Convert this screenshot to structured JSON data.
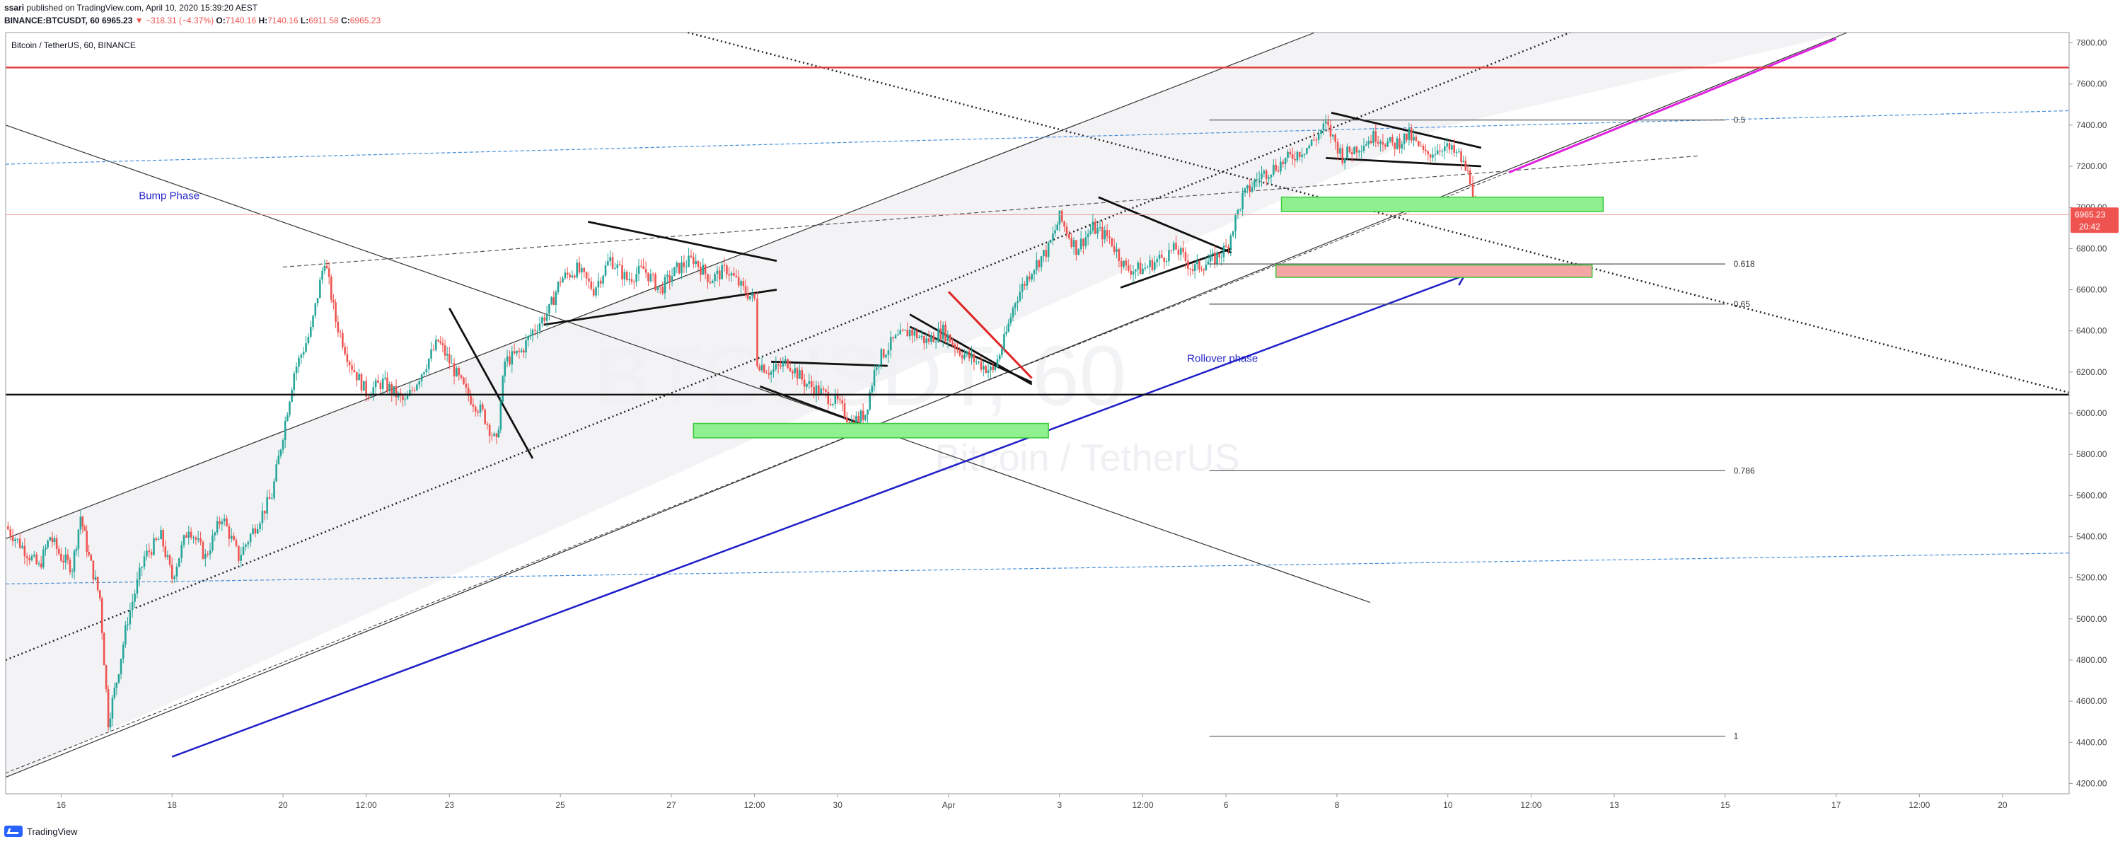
{
  "header": {
    "publisher": "ssari",
    "published_text": "published on TradingView.com, April 10, 2020 15:39:20 AEST",
    "symbol": "BINANCE:BTCUSDT, 60",
    "last": "6965.23",
    "change": "−318.31 (−4.37%)",
    "o_label": "O:",
    "o_val": "7140.16",
    "h_label": "H:",
    "h_val": "7140.16",
    "l_label": "L:",
    "l_val": "6911.58",
    "c_label": "C:",
    "c_val": "6965.23"
  },
  "footer": {
    "brand": "TradingView"
  },
  "colors": {
    "up": "#26a69a",
    "down": "#ef5350",
    "accent": "#2962ff"
  },
  "chart_data": {
    "type": "candlestick",
    "title": "Bitcoin / TetherUS, 60, BINANCE",
    "watermark_symbol": "BTCUSDT, 60",
    "watermark_name": "Bitcoin / TetherUS",
    "grid": false,
    "ylim": [
      4150,
      7850
    ],
    "x_range_days": [
      15.0,
      21.4
    ],
    "y_ticks": [
      4200,
      4400,
      4600,
      4800,
      5000,
      5200,
      5400,
      5600,
      5800,
      6000,
      6200,
      6400,
      6600,
      6800,
      7000,
      7200,
      7400,
      7600,
      7800
    ],
    "y_tick_labels": [
      "4200.00",
      "4400.00",
      "4600.00",
      "4800.00",
      "5000.00",
      "5200.00",
      "5400.00",
      "5600.00",
      "5800.00",
      "6000.00",
      "6200.00",
      "6400.00",
      "6600.00",
      "6800.00",
      "7000.00",
      "7200.00",
      "7400.00",
      "7600.00",
      "7800.00"
    ],
    "x_ticks": [
      {
        "label": "16",
        "day": 16.0
      },
      {
        "label": "18",
        "day": 18.0
      },
      {
        "label": "20",
        "day": 20.0
      },
      {
        "label": "12:00",
        "day": 21.5
      },
      {
        "label": "23",
        "day": 23.0
      },
      {
        "label": "25",
        "day": 25.0
      },
      {
        "label": "27",
        "day": 27.0
      },
      {
        "label": "12:00",
        "day": 28.5
      },
      {
        "label": "30",
        "day": 30.0
      },
      {
        "label": "Apr",
        "day": 32.0
      },
      {
        "label": "3",
        "day": 34.0
      },
      {
        "label": "12:00",
        "day": 35.5
      },
      {
        "label": "6",
        "day": 37.0
      },
      {
        "label": "8",
        "day": 39.0
      },
      {
        "label": "10",
        "day": 41.0
      },
      {
        "label": "12:00",
        "day": 42.5
      },
      {
        "label": "13",
        "day": 44.0
      },
      {
        "label": "15",
        "day": 46.0
      },
      {
        "label": "17",
        "day": 48.0
      },
      {
        "label": "12:00",
        "day": 49.5
      },
      {
        "label": "20",
        "day": 51.0
      }
    ],
    "last_price": {
      "value": 6965.23,
      "label": "6965.23",
      "countdown": "20:42"
    },
    "price_path": [
      [
        15.0,
        5450
      ],
      [
        15.3,
        5350
      ],
      [
        15.6,
        5250
      ],
      [
        15.8,
        5400
      ],
      [
        16.0,
        5300
      ],
      [
        16.2,
        5250
      ],
      [
        16.35,
        5500
      ],
      [
        16.5,
        5300
      ],
      [
        16.7,
        5100
      ],
      [
        16.85,
        4500
      ],
      [
        17.0,
        4700
      ],
      [
        17.2,
        5000
      ],
      [
        17.5,
        5300
      ],
      [
        17.8,
        5400
      ],
      [
        18.0,
        5200
      ],
      [
        18.3,
        5450
      ],
      [
        18.6,
        5300
      ],
      [
        18.9,
        5500
      ],
      [
        19.2,
        5300
      ],
      [
        19.5,
        5450
      ],
      [
        19.8,
        5600
      ],
      [
        20.0,
        5900
      ],
      [
        20.2,
        6200
      ],
      [
        20.5,
        6400
      ],
      [
        20.75,
        6750
      ],
      [
        20.95,
        6450
      ],
      [
        21.2,
        6250
      ],
      [
        21.5,
        6100
      ],
      [
        21.8,
        6150
      ],
      [
        22.2,
        6050
      ],
      [
        22.5,
        6200
      ],
      [
        22.8,
        6350
      ],
      [
        23.0,
        6250
      ],
      [
        23.3,
        6100
      ],
      [
        23.6,
        6000
      ],
      [
        23.85,
        5850
      ],
      [
        24.0,
        6250
      ],
      [
        24.3,
        6300
      ],
      [
        24.5,
        6400
      ],
      [
        24.8,
        6500
      ],
      [
        25.0,
        6650
      ],
      [
        25.3,
        6700
      ],
      [
        25.6,
        6600
      ],
      [
        25.9,
        6750
      ],
      [
        26.2,
        6650
      ],
      [
        26.5,
        6700
      ],
      [
        26.8,
        6600
      ],
      [
        27.1,
        6700
      ],
      [
        27.4,
        6750
      ],
      [
        27.7,
        6650
      ],
      [
        28.0,
        6700
      ],
      [
        28.3,
        6600
      ],
      [
        28.5,
        6550
      ],
      [
        28.55,
        6250
      ],
      [
        28.8,
        6200
      ],
      [
        29.1,
        6250
      ],
      [
        29.4,
        6150
      ],
      [
        29.7,
        6100
      ],
      [
        30.0,
        6050
      ],
      [
        30.25,
        5950
      ],
      [
        30.5,
        6000
      ],
      [
        30.7,
        6250
      ],
      [
        31.0,
        6350
      ],
      [
        31.3,
        6400
      ],
      [
        31.6,
        6350
      ],
      [
        31.9,
        6400
      ],
      [
        32.2,
        6300
      ],
      [
        32.5,
        6250
      ],
      [
        32.8,
        6200
      ],
      [
        33.0,
        6350
      ],
      [
        33.2,
        6550
      ],
      [
        33.5,
        6700
      ],
      [
        33.8,
        6800
      ],
      [
        34.0,
        6950
      ],
      [
        34.3,
        6800
      ],
      [
        34.6,
        6900
      ],
      [
        34.9,
        6850
      ],
      [
        35.2,
        6700
      ],
      [
        35.5,
        6700
      ],
      [
        35.8,
        6750
      ],
      [
        36.1,
        6800
      ],
      [
        36.4,
        6700
      ],
      [
        36.8,
        6750
      ],
      [
        37.0,
        6800
      ],
      [
        37.3,
        7050
      ],
      [
        37.6,
        7150
      ],
      [
        37.9,
        7200
      ],
      [
        38.2,
        7250
      ],
      [
        38.5,
        7300
      ],
      [
        38.8,
        7400
      ],
      [
        39.1,
        7250
      ],
      [
        39.4,
        7300
      ],
      [
        39.7,
        7350
      ],
      [
        40.0,
        7300
      ],
      [
        40.3,
        7350
      ],
      [
        40.6,
        7250
      ],
      [
        40.9,
        7300
      ],
      [
        41.2,
        7250
      ],
      [
        41.4,
        7140
      ],
      [
        41.5,
        6965
      ]
    ],
    "horizontal_levels": [
      {
        "name": "resistance-red",
        "value": 7680
      },
      {
        "name": "current-price-line",
        "value": 6965
      },
      {
        "name": "support-black",
        "value": 6090
      }
    ],
    "fib_levels": [
      {
        "label": "0.5",
        "value": 7425
      },
      {
        "label": "0.618",
        "value": 6725
      },
      {
        "label": "0.65",
        "value": 6530
      },
      {
        "label": "0.786",
        "value": 5720
      },
      {
        "label": "1",
        "value": 4430
      }
    ],
    "zones": [
      {
        "name": "green-zone-upper",
        "day0": 38.0,
        "day1": 43.8,
        "y0": 6980,
        "y1": 7050,
        "fill": "#8ef08e"
      },
      {
        "name": "red-zone-middle",
        "day0": 37.9,
        "day1": 43.6,
        "y0": 6660,
        "y1": 6720,
        "fill": "#f6a5a5"
      },
      {
        "name": "green-zone-lower",
        "day0": 27.4,
        "day1": 33.8,
        "y0": 5880,
        "y1": 5950,
        "fill": "#8ef08e"
      }
    ],
    "annotations": [
      {
        "text": "Bump Phase",
        "day": 17.4,
        "value": 7040
      },
      {
        "text": "Rollover phase",
        "day": 36.3,
        "value": 6250
      }
    ]
  }
}
